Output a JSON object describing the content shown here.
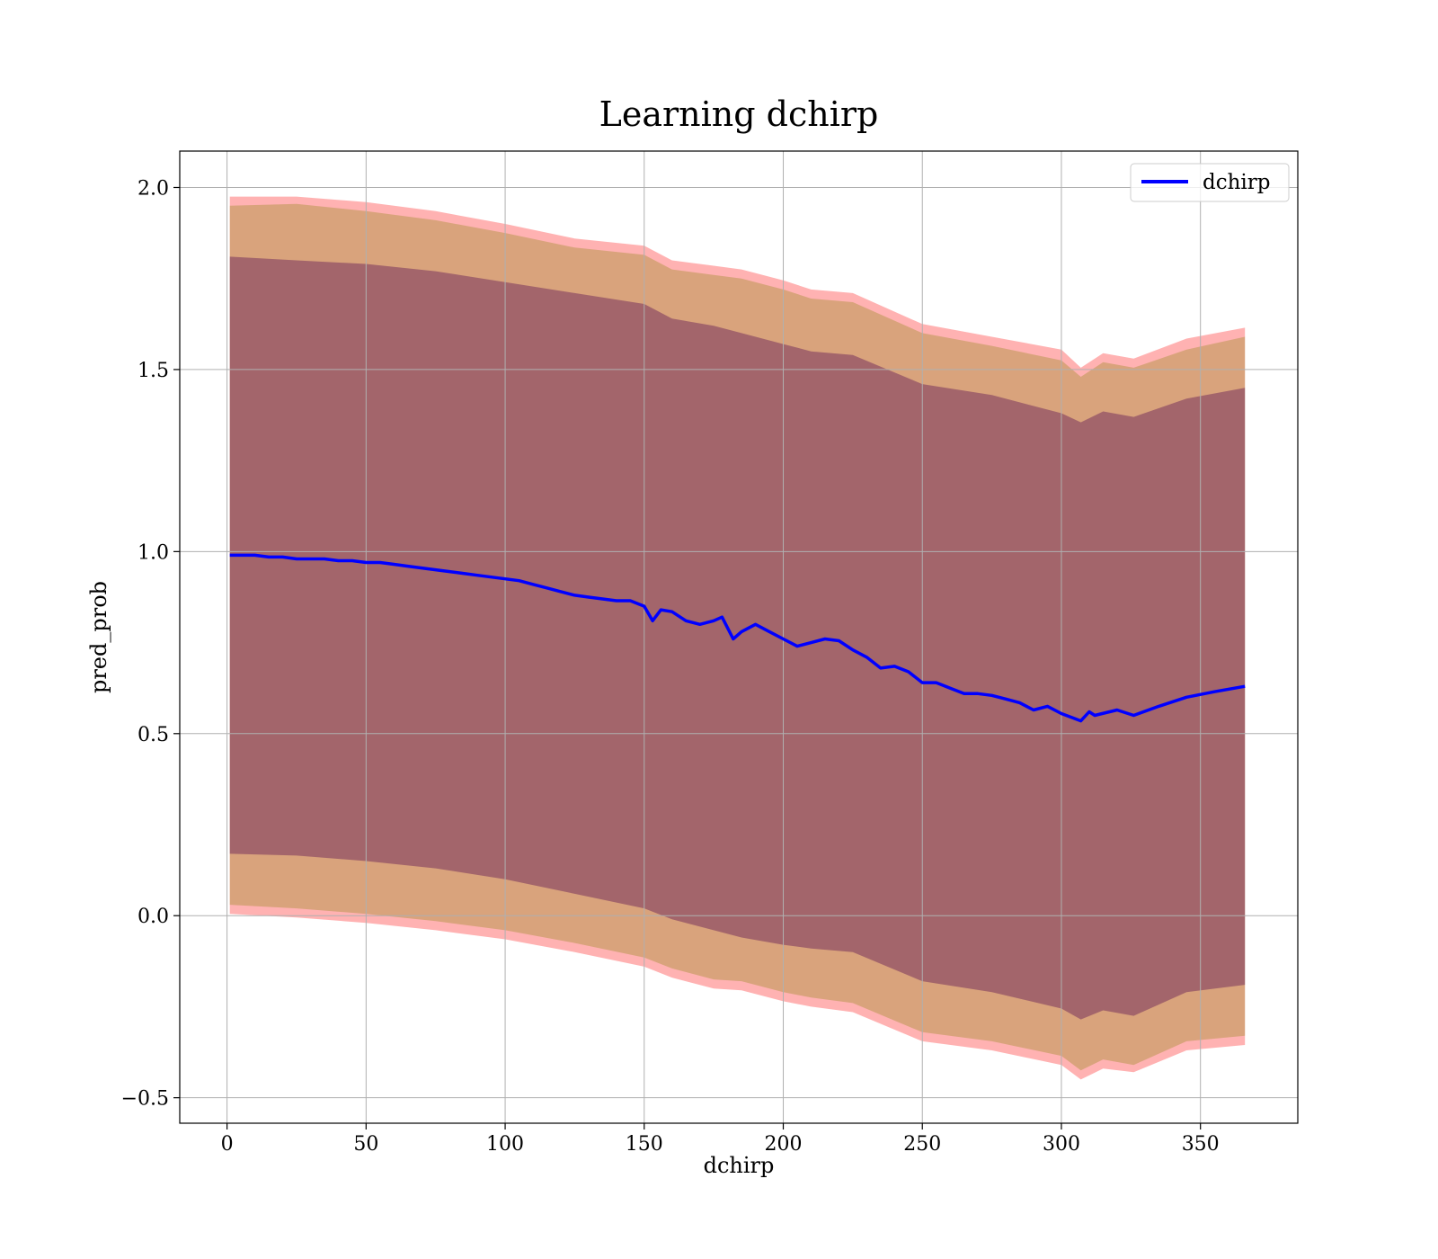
{
  "chart_data": {
    "type": "line",
    "title": "Learning dchirp",
    "xlabel": "dchirp",
    "ylabel": "pred_prob",
    "xlim": [
      -17,
      385
    ],
    "ylim": [
      -0.57,
      2.1
    ],
    "xticks": [
      0,
      50,
      100,
      150,
      200,
      250,
      300,
      350
    ],
    "xtick_labels": [
      "0",
      "50",
      "100",
      "150",
      "200",
      "250",
      "300",
      "350"
    ],
    "yticks": [
      -0.5,
      0.0,
      0.5,
      1.0,
      1.5,
      2.0
    ],
    "ytick_labels": [
      "−0.5",
      "0.0",
      "0.5",
      "1.0",
      "1.5",
      "2.0"
    ],
    "grid": true,
    "legend_position": "top-right",
    "series": [
      {
        "name": "dchirp",
        "color": "#0000ff",
        "x": [
          1,
          5,
          10,
          15,
          20,
          25,
          30,
          35,
          40,
          45,
          50,
          55,
          60,
          65,
          70,
          75,
          80,
          85,
          90,
          95,
          100,
          105,
          110,
          115,
          120,
          125,
          130,
          135,
          140,
          145,
          150,
          153,
          156,
          160,
          165,
          170,
          175,
          178,
          182,
          185,
          190,
          195,
          200,
          205,
          210,
          215,
          220,
          225,
          230,
          235,
          240,
          245,
          250,
          255,
          260,
          265,
          270,
          275,
          280,
          285,
          290,
          295,
          300,
          307,
          310,
          312,
          320,
          326,
          335,
          345,
          355,
          366
        ],
        "y": [
          0.99,
          0.99,
          0.99,
          0.985,
          0.985,
          0.98,
          0.98,
          0.98,
          0.975,
          0.975,
          0.97,
          0.97,
          0.965,
          0.96,
          0.955,
          0.95,
          0.945,
          0.94,
          0.935,
          0.93,
          0.925,
          0.92,
          0.91,
          0.9,
          0.89,
          0.88,
          0.875,
          0.87,
          0.865,
          0.865,
          0.85,
          0.81,
          0.84,
          0.835,
          0.81,
          0.8,
          0.81,
          0.82,
          0.76,
          0.78,
          0.8,
          0.78,
          0.76,
          0.74,
          0.75,
          0.76,
          0.755,
          0.73,
          0.71,
          0.68,
          0.685,
          0.67,
          0.64,
          0.64,
          0.625,
          0.61,
          0.61,
          0.605,
          0.595,
          0.585,
          0.565,
          0.575,
          0.555,
          0.535,
          0.56,
          0.55,
          0.565,
          0.55,
          0.575,
          0.6,
          0.615,
          0.63
        ]
      }
    ],
    "bands": [
      {
        "color": "#ff0000",
        "opacity": 0.3,
        "x": [
          1,
          25,
          50,
          75,
          100,
          125,
          150,
          160,
          175,
          185,
          200,
          210,
          225,
          250,
          275,
          300,
          307,
          315,
          326,
          345,
          366
        ],
        "upper": [
          1.975,
          1.975,
          1.96,
          1.935,
          1.9,
          1.86,
          1.84,
          1.8,
          1.785,
          1.775,
          1.745,
          1.72,
          1.71,
          1.625,
          1.59,
          1.555,
          1.505,
          1.545,
          1.53,
          1.585,
          1.615
        ],
        "lower": [
          0.005,
          -0.005,
          -0.02,
          -0.04,
          -0.065,
          -0.1,
          -0.14,
          -0.17,
          -0.2,
          -0.205,
          -0.235,
          -0.25,
          -0.265,
          -0.345,
          -0.37,
          -0.41,
          -0.45,
          -0.42,
          -0.43,
          -0.37,
          -0.355
        ]
      },
      {
        "color": "#808000",
        "opacity": 0.3,
        "x": [
          1,
          25,
          50,
          75,
          100,
          125,
          150,
          160,
          175,
          185,
          200,
          210,
          225,
          250,
          275,
          300,
          307,
          315,
          326,
          345,
          366
        ],
        "upper": [
          1.95,
          1.955,
          1.935,
          1.91,
          1.875,
          1.835,
          1.815,
          1.775,
          1.76,
          1.75,
          1.72,
          1.695,
          1.685,
          1.6,
          1.565,
          1.525,
          1.48,
          1.52,
          1.505,
          1.555,
          1.59
        ],
        "lower": [
          0.03,
          0.02,
          0.005,
          -0.015,
          -0.04,
          -0.075,
          -0.115,
          -0.145,
          -0.175,
          -0.18,
          -0.21,
          -0.225,
          -0.24,
          -0.32,
          -0.345,
          -0.385,
          -0.425,
          -0.395,
          -0.41,
          -0.345,
          -0.33
        ]
      },
      {
        "color": "#4b0050",
        "opacity": 0.38,
        "x": [
          1,
          25,
          50,
          75,
          100,
          125,
          150,
          160,
          175,
          185,
          200,
          210,
          225,
          250,
          275,
          300,
          307,
          315,
          326,
          345,
          366
        ],
        "upper": [
          1.81,
          1.8,
          1.79,
          1.77,
          1.74,
          1.71,
          1.68,
          1.64,
          1.62,
          1.6,
          1.57,
          1.55,
          1.54,
          1.46,
          1.43,
          1.38,
          1.355,
          1.385,
          1.37,
          1.42,
          1.45
        ],
        "lower": [
          0.17,
          0.165,
          0.15,
          0.13,
          0.1,
          0.06,
          0.02,
          -0.01,
          -0.04,
          -0.06,
          -0.08,
          -0.09,
          -0.1,
          -0.18,
          -0.21,
          -0.255,
          -0.285,
          -0.26,
          -0.275,
          -0.21,
          -0.19
        ]
      }
    ]
  }
}
